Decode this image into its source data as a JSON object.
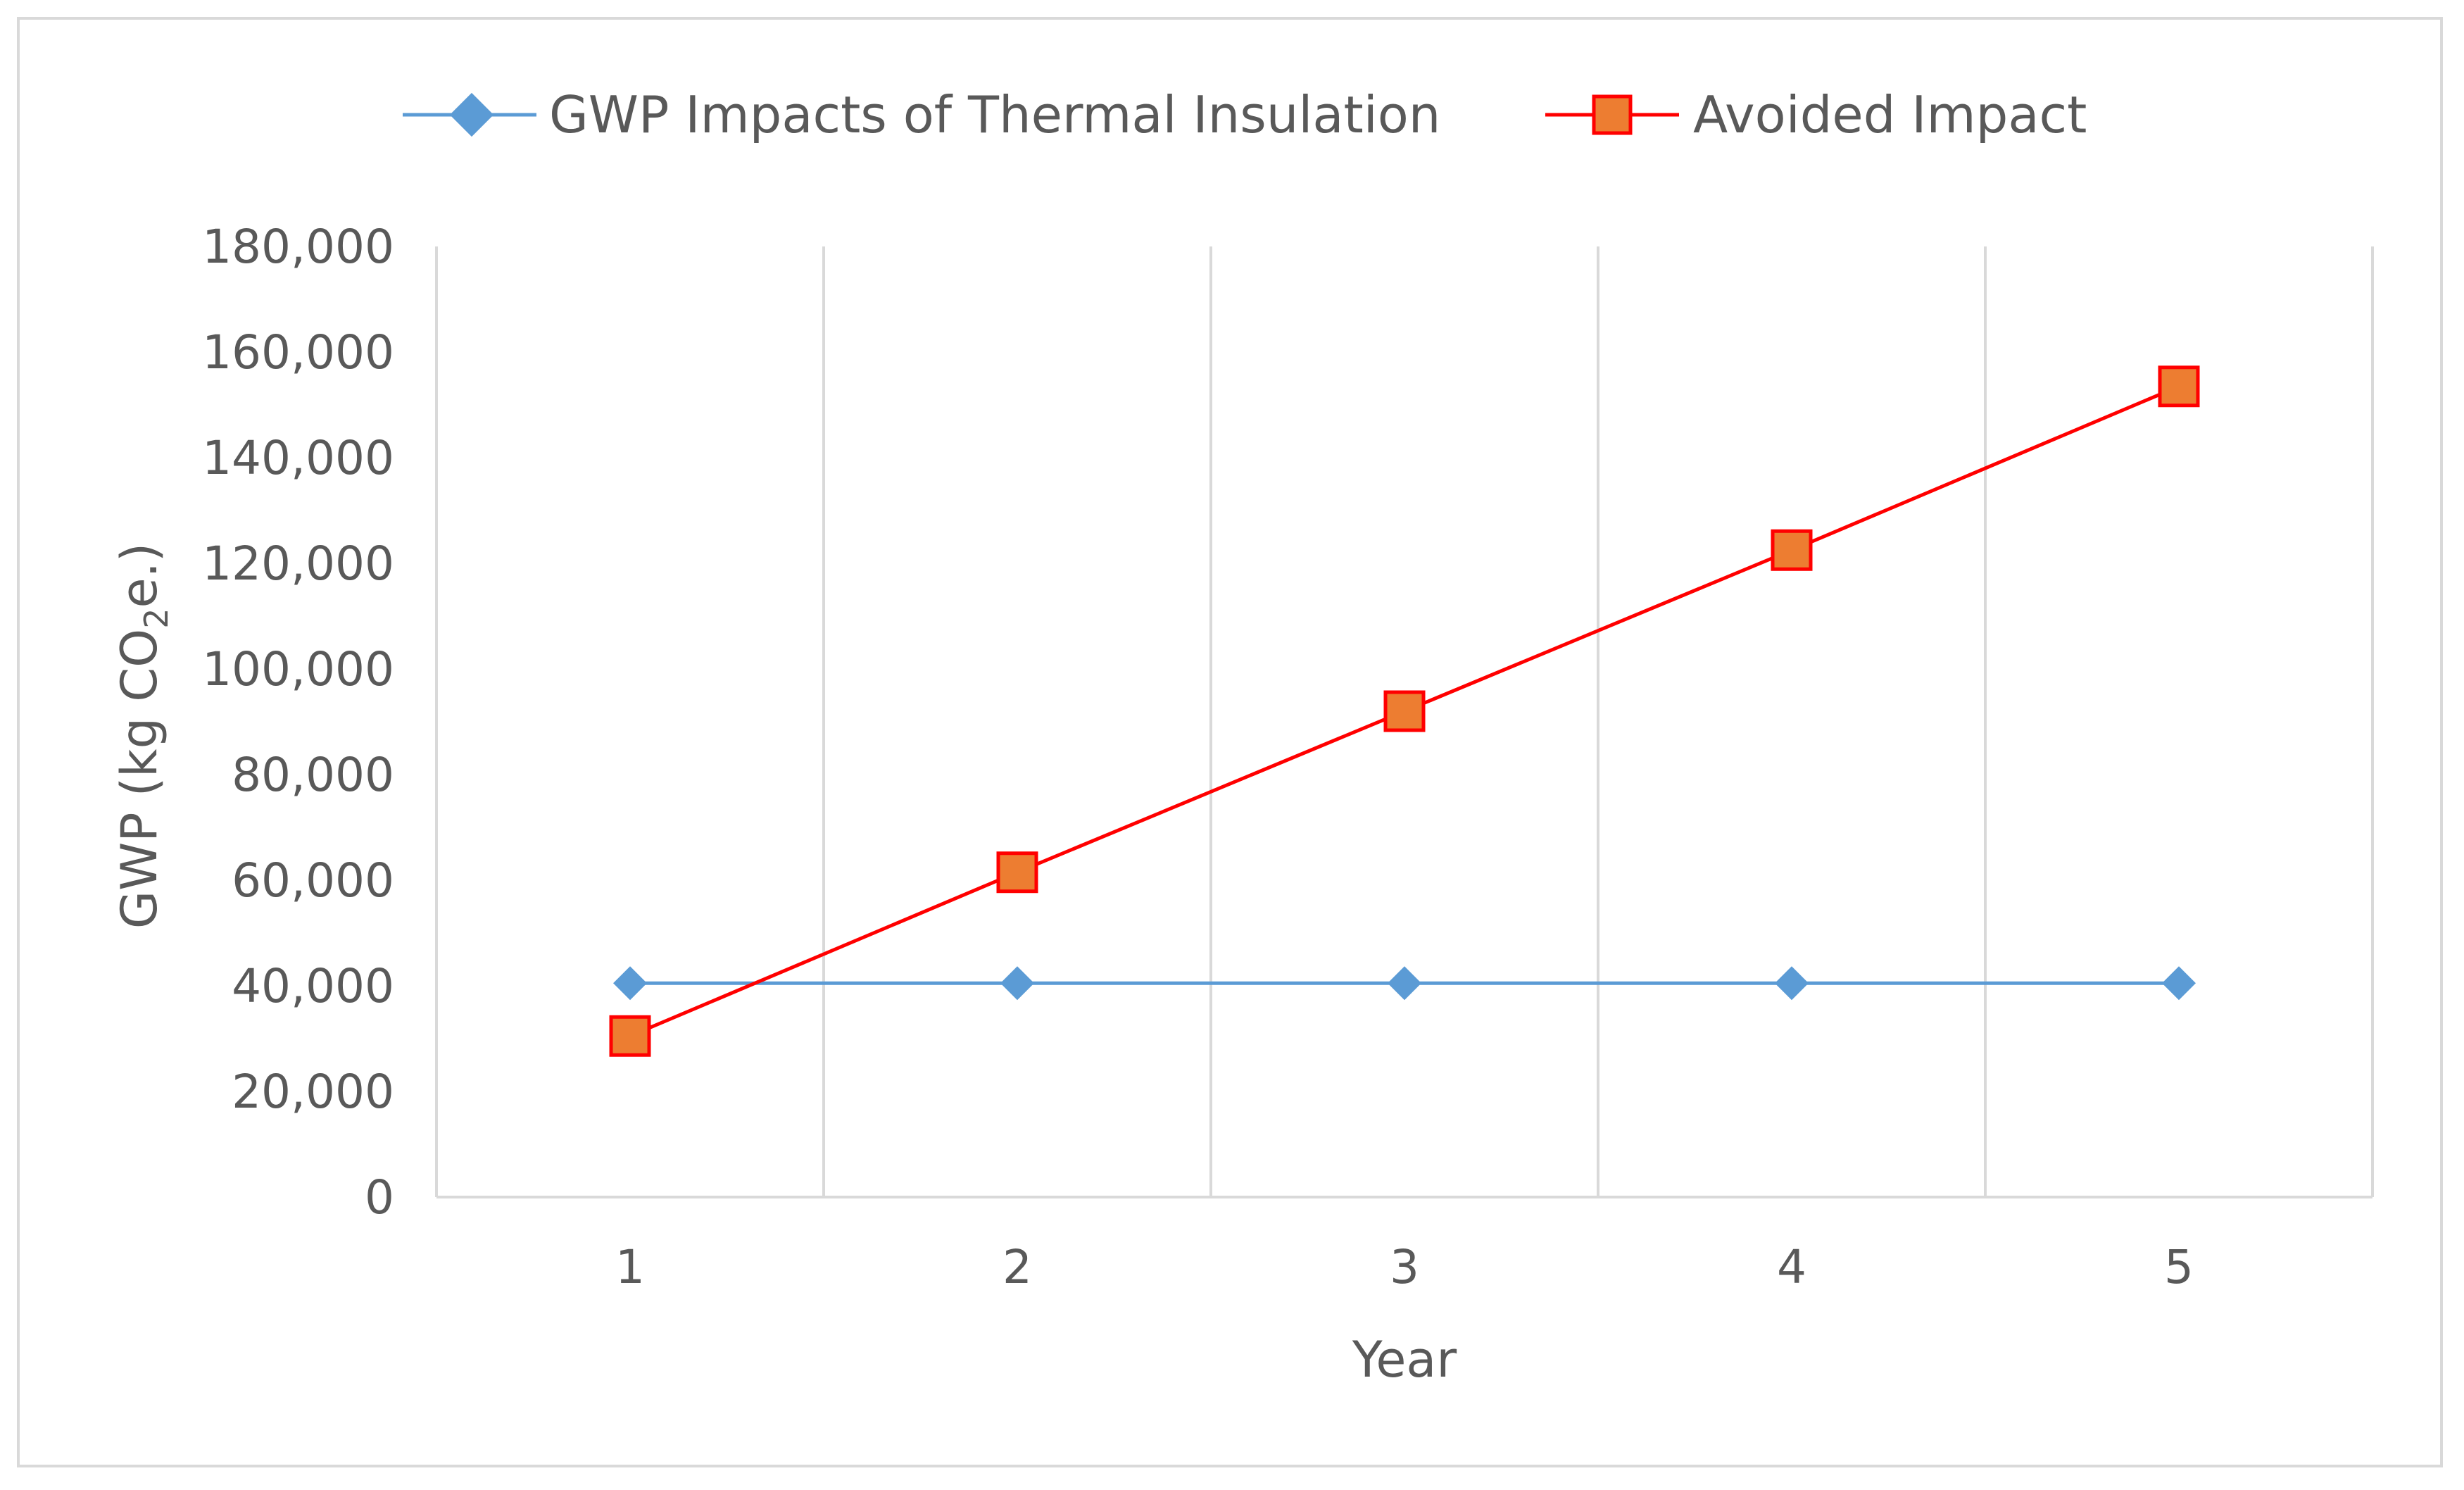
{
  "chart_data": {
    "type": "line",
    "title": "",
    "xlabel": "Year",
    "ylabel_main": "GWP (kg CO",
    "ylabel_sub": "2",
    "ylabel_tail": "e.)",
    "categories": [
      "1",
      "2",
      "3",
      "4",
      "5"
    ],
    "ylim": [
      0,
      180000
    ],
    "ytick_values": [
      0,
      20000,
      40000,
      60000,
      80000,
      100000,
      120000,
      140000,
      160000,
      180000
    ],
    "ytick_labels": [
      "0",
      "20,000",
      "40,000",
      "60,000",
      "80,000",
      "100,000",
      "120,000",
      "140,000",
      "160,000",
      "180,000"
    ],
    "grid": "vertical",
    "legend_position": "top",
    "series": [
      {
        "name": "GWP Impacts of Thermal Insulation",
        "values": [
          40500,
          40500,
          40500,
          40500,
          40500
        ],
        "color": "#5b9bd5",
        "marker": "diamond"
      },
      {
        "name": "Avoided Impact",
        "values": [
          30500,
          61500,
          92000,
          122500,
          153500
        ],
        "color": "#ff0000",
        "marker_fill": "#ed7d31",
        "marker": "square"
      }
    ]
  }
}
